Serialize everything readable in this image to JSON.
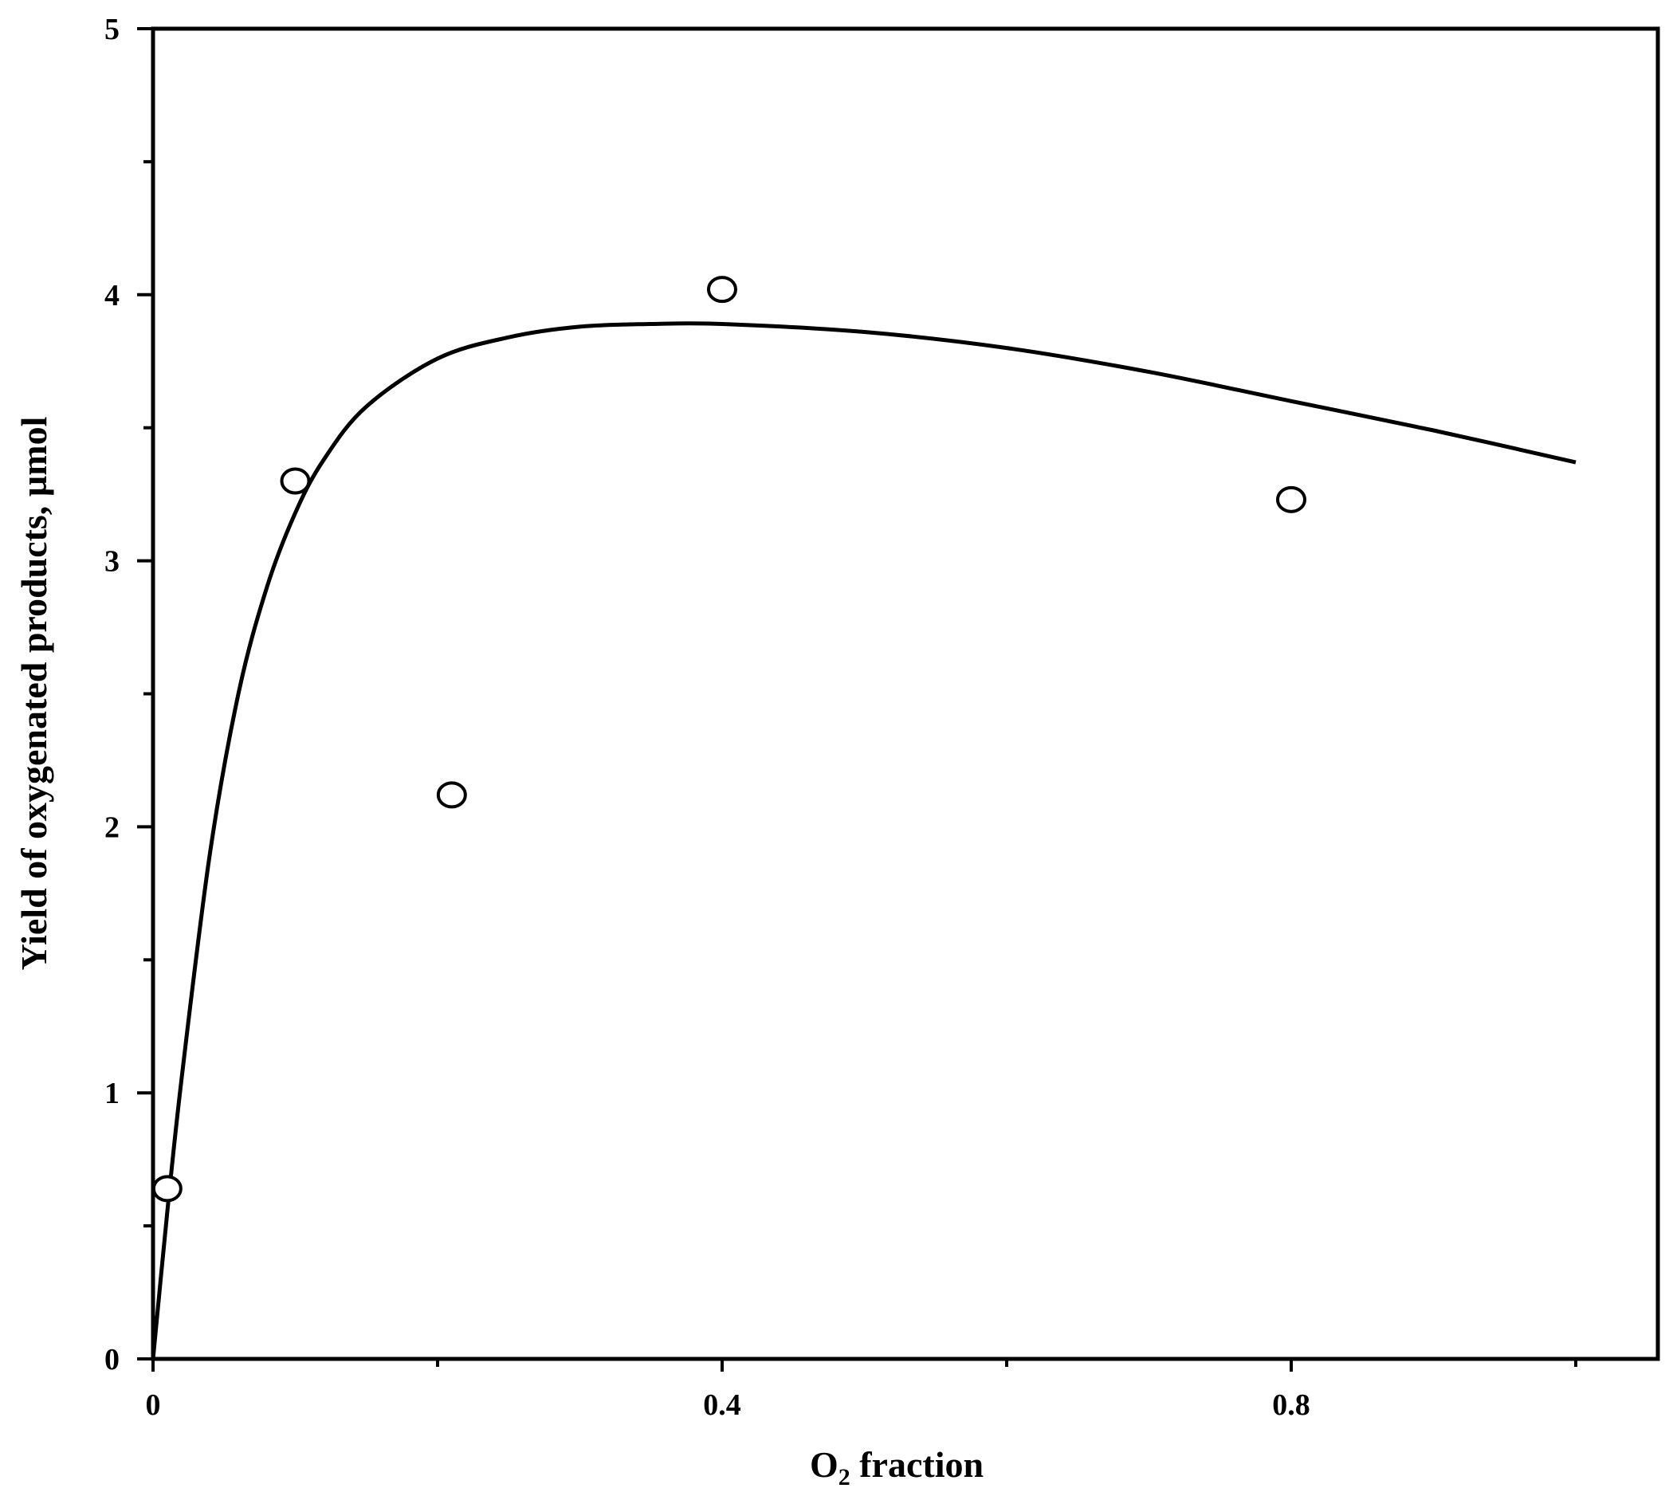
{
  "chart_data": {
    "type": "scatter",
    "title": "",
    "xlabel": {
      "main": "O",
      "sub": "2",
      "rest": " fraction"
    },
    "ylabel": "Yield of oxygenated products, µmol",
    "xlim": [
      0,
      1.05
    ],
    "ylim": [
      0,
      5
    ],
    "x_ticks_major": [
      0,
      0.4,
      0.8
    ],
    "x_ticks_minor": [
      0.2,
      0.6,
      1.0
    ],
    "x_tick_labels": [
      "0",
      "0.4",
      "0.8"
    ],
    "y_ticks_major": [
      0,
      1,
      2,
      3,
      4,
      5
    ],
    "y_ticks_minor": [
      0.5,
      1.5,
      2.5,
      3.5,
      4.5
    ],
    "y_tick_labels": [
      "0",
      "1",
      "2",
      "3",
      "4",
      "5"
    ],
    "grid": false,
    "series": [
      {
        "kind": "points",
        "marker": "open-circle",
        "x": [
          0.01,
          0.1,
          0.21,
          0.4,
          0.8
        ],
        "y": [
          0.64,
          3.3,
          2.12,
          4.02,
          3.23
        ]
      },
      {
        "kind": "fit-line",
        "x": [
          0,
          0.01,
          0.02,
          0.04,
          0.06,
          0.08,
          0.1,
          0.12,
          0.15,
          0.2,
          0.25,
          0.3,
          0.35,
          0.4,
          0.5,
          0.6,
          0.7,
          0.8,
          0.9,
          1.0
        ],
        "y": [
          0,
          0.55,
          1.05,
          1.9,
          2.5,
          2.9,
          3.18,
          3.38,
          3.58,
          3.76,
          3.84,
          3.88,
          3.89,
          3.89,
          3.86,
          3.8,
          3.71,
          3.6,
          3.49,
          3.37
        ]
      }
    ]
  }
}
